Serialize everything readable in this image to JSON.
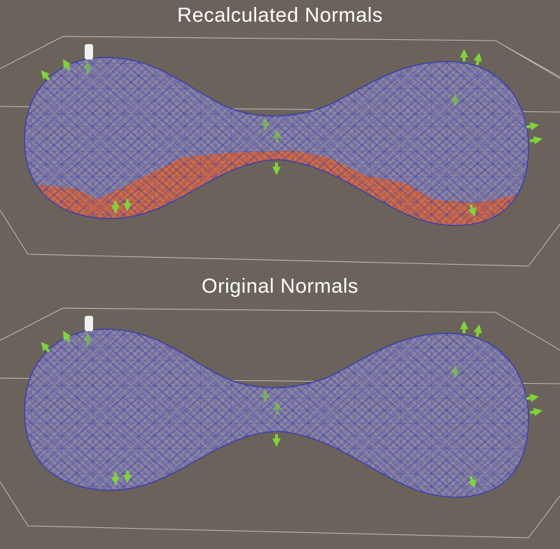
{
  "panels": [
    {
      "title": "Recalculated Normals",
      "inverted_faces_color": "#d9673f"
    },
    {
      "title": "Original Normals"
    }
  ],
  "colors": {
    "background": "#6b635b",
    "wireframe": "#3a3fa8",
    "mesh_fill": "#8a84b0",
    "normal_arrows": "#7fd43a",
    "bounds": "#d8d4d0"
  }
}
